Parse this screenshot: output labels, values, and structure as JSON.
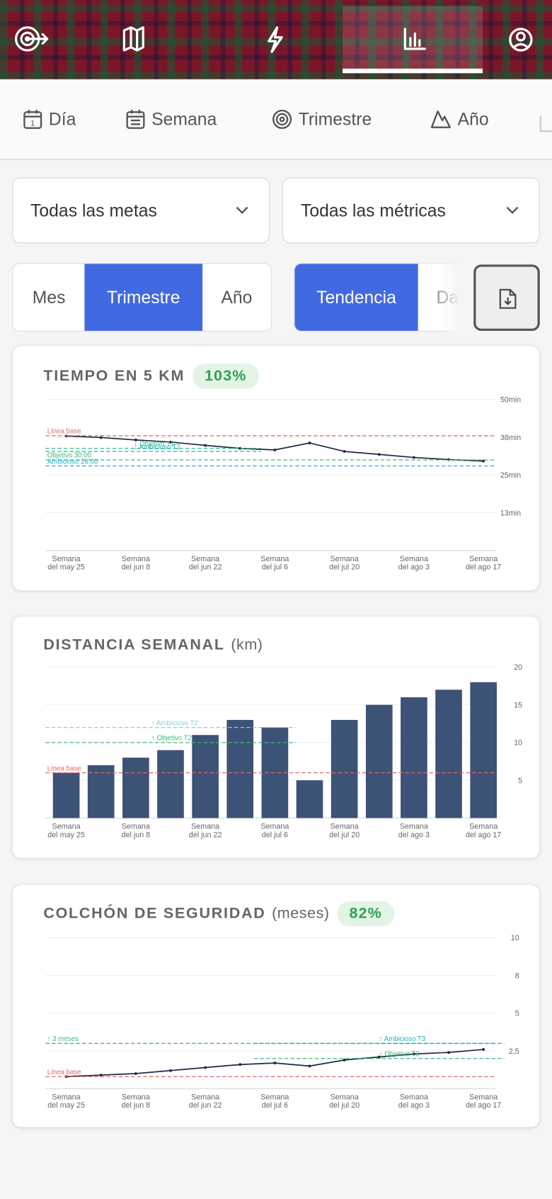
{
  "period_tabs": [
    "Día",
    "Semana",
    "Trimestre",
    "Año"
  ],
  "filters": [
    "Todas las metas",
    "Todas las métricas"
  ],
  "range_options": [
    "Mes",
    "Trimestre",
    "Año"
  ],
  "range_selected": 1,
  "view_options": [
    "Tendencia",
    "Datos"
  ],
  "view_selected": 0,
  "chart_data": [
    {
      "type": "line",
      "title": "TIEMPO EN 5 KM",
      "badge": "103%",
      "color": "#1e2b45",
      "categories": [
        "Semana\ndel may 25",
        null,
        "Semana\ndel jun 8",
        null,
        "Semana\ndel jun 22",
        null,
        "Semana\ndel jul 6",
        null,
        "Semana\ndel jul 20",
        null,
        "Semana\ndel ago 3",
        null,
        "Semana\ndel ago 17"
      ],
      "values": [
        37.9,
        37.4,
        36.6,
        35.9,
        34.8,
        33.8,
        33.3,
        35.6,
        32.8,
        31.8,
        30.8,
        30.1,
        29.6
      ],
      "ylim": [
        0,
        50
      ],
      "yticks": [
        {
          "value": 12.5,
          "label": "13min"
        },
        {
          "value": 25,
          "label": "25min"
        },
        {
          "value": 37.5,
          "label": "38min"
        },
        {
          "value": 50,
          "label": "50min"
        }
      ],
      "grid": true,
      "reference_lines": [
        {
          "label": "Línea base",
          "value": 38,
          "color": "#e06666"
        },
        {
          "label": "↓ Objetivo T2",
          "value": 33.8,
          "color": "#3dbb7a",
          "range": [
            0,
            5
          ]
        },
        {
          "label": "↓ Ambicioso T2",
          "value": 32.8,
          "color": "#22b0c4",
          "range": [
            0,
            5
          ]
        },
        {
          "label": "Objetivo 30:00",
          "value": 30,
          "color": "#3dbb7a"
        },
        {
          "label": "Ambicioso 28:00",
          "value": 28,
          "color": "#22b0c4"
        }
      ]
    },
    {
      "type": "bar",
      "title": "DISTANCIA SEMANAL",
      "unit": "(km)",
      "color": "#3d5277",
      "categories": [
        "Semana\ndel may 25",
        null,
        "Semana\ndel jun 8",
        null,
        "Semana\ndel jun 22",
        null,
        "Semana\ndel jul 6",
        null,
        "Semana\ndel jul 20",
        null,
        "Semana\ndel ago 3",
        null,
        "Semana\ndel ago 17"
      ],
      "values": [
        6,
        7,
        8,
        9,
        11,
        13,
        12,
        5,
        13,
        15,
        16,
        17,
        18
      ],
      "ylim": [
        0,
        20
      ],
      "yticks": [
        5,
        10,
        15,
        20
      ],
      "grid": true,
      "reference_lines": [
        {
          "label": "Línea base",
          "value": 6,
          "color": "#e06666"
        },
        {
          "label": "↑ Objetivo T2",
          "value": 10,
          "color": "#3dbb7a",
          "range": [
            0,
            6
          ]
        },
        {
          "label": "↑ Ambicioso T2",
          "value": 12,
          "color": "#7fd3e0",
          "range": [
            0,
            6
          ]
        }
      ]
    },
    {
      "type": "line",
      "title": "COLCHÓN DE SEGURIDAD",
      "unit": "(meses)",
      "badge": "82%",
      "color": "#1e2b45",
      "categories": [
        "Semana\ndel may 25",
        null,
        "Semana\ndel jun 8",
        null,
        "Semana\ndel jun 22",
        null,
        "Semana\ndel jul 6",
        null,
        "Semana\ndel jul 20",
        null,
        "Semana\ndel ago 3",
        null,
        "Semana\ndel ago 17"
      ],
      "values": [
        0.8,
        0.9,
        1.0,
        1.2,
        1.4,
        1.6,
        1.7,
        1.5,
        1.9,
        2.1,
        2.3,
        2.4,
        2.6
      ],
      "ylim": [
        0,
        10
      ],
      "yticks": [
        {
          "value": 2.5,
          "label": "2,5"
        },
        5,
        {
          "value": 7.5,
          "label": "8"
        },
        10
      ],
      "grid": true,
      "reference_lines": [
        {
          "label": "Línea base",
          "value": 0.8,
          "color": "#e06666"
        },
        {
          "label": "↑ 3 meses",
          "value": 3,
          "color": "#3dbb7a"
        },
        {
          "label": "↑ Objetivo T3",
          "value": 2,
          "color": "#3dbb7a",
          "range": [
            6,
            12
          ]
        },
        {
          "label": "↑ Ambicioso T3",
          "value": 3,
          "color": "#22b0c4",
          "range": [
            6,
            12
          ]
        }
      ]
    }
  ]
}
